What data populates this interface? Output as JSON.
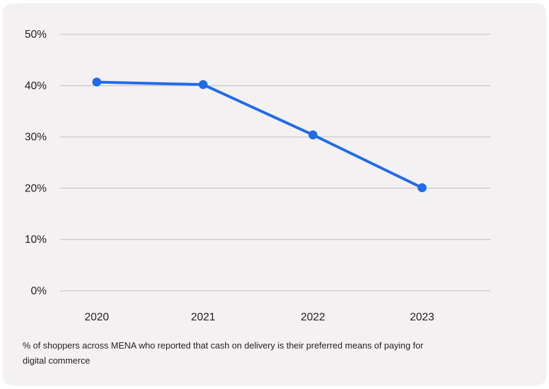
{
  "chart_data": {
    "type": "line",
    "categories": [
      "2020",
      "2021",
      "2022",
      "2023"
    ],
    "series": [
      {
        "values": [
          40.7,
          40.2,
          30.4,
          20.1
        ]
      }
    ],
    "yticks": [
      "0%",
      "10%",
      "20%",
      "30%",
      "40%",
      "50%"
    ],
    "ylim": [
      0,
      50
    ],
    "grid": true,
    "caption": "% of shoppers across MENA who reported that cash on delivery is their preferred means of paying for digital commerce"
  },
  "colors": {
    "line": "#1f6aed",
    "grid": "#c9c9c9",
    "background": "#f3f1f2"
  }
}
